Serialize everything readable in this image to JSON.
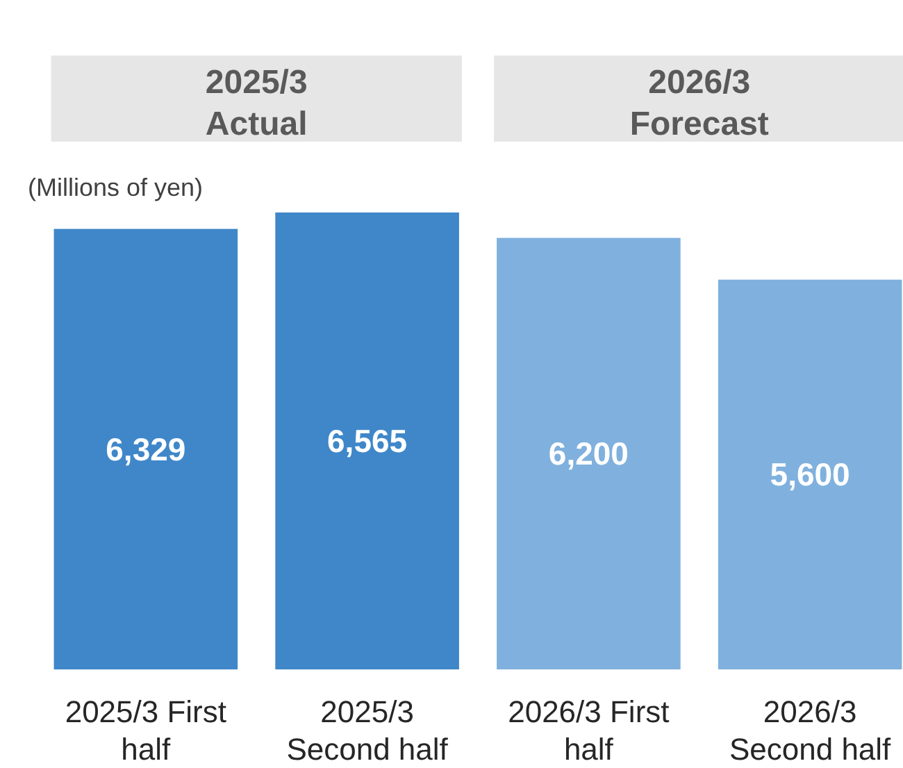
{
  "chart_data": {
    "type": "bar",
    "ylabel": "(Millions of yen)",
    "categories": [
      "2025/3 First half",
      "2025/3 Second half",
      "2026/3 First half",
      "2026/3 Second half"
    ],
    "values": [
      6329,
      6565,
      6200,
      5600
    ],
    "colors": [
      "#3f87c9",
      "#3f87c9",
      "#80b1de",
      "#80b1de"
    ],
    "value_labels": [
      "6,329",
      "6,565",
      "6,200",
      "5,600"
    ],
    "annotations": [
      "2025/3 Actual",
      "2026/3 Forecast"
    ]
  }
}
